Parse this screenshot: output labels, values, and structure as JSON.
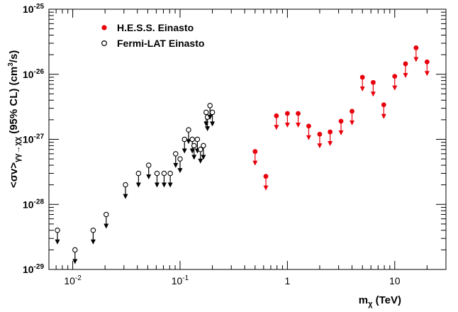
{
  "chart_data": {
    "type": "scatter",
    "title": "",
    "xlabel": {
      "main": "m",
      "sub": "χ",
      "rest": " (TeV)"
    },
    "ylabel": {
      "pre": "<σv>",
      "sub": "γγ→χχ",
      "post": " (95% CL) (cm",
      "sup": "3",
      "tail": "/s)"
    },
    "x_scale": "log",
    "y_scale": "log",
    "xlim": [
      0.006,
      30
    ],
    "ylim": [
      1e-29,
      1e-25
    ],
    "grid": false,
    "legend_position": "top-left",
    "x_ticks": [
      {
        "value": 0.01,
        "base": "10",
        "exp": "-2"
      },
      {
        "value": 0.1,
        "base": "10",
        "exp": "-1"
      },
      {
        "value": 1,
        "base": "1",
        "exp": ""
      },
      {
        "value": 10,
        "base": "10",
        "exp": ""
      }
    ],
    "y_ticks": [
      {
        "value": 1e-29,
        "base": "10",
        "exp": "-29"
      },
      {
        "value": 1e-28,
        "base": "10",
        "exp": "-28"
      },
      {
        "value": 1e-27,
        "base": "10",
        "exp": "-27"
      },
      {
        "value": 1e-26,
        "base": "10",
        "exp": "-26"
      },
      {
        "value": 1e-25,
        "base": "10",
        "exp": "-25"
      }
    ],
    "series": [
      {
        "name": "H.E.S.S. Einasto",
        "marker": "filled-circle",
        "color": "#e8000b",
        "upper_limits": true,
        "points": [
          {
            "x": 0.5,
            "y": 6.5e-28
          },
          {
            "x": 0.63,
            "y": 2.7e-28
          },
          {
            "x": 0.79,
            "y": 2.3e-27
          },
          {
            "x": 1.0,
            "y": 2.5e-27
          },
          {
            "x": 1.26,
            "y": 2.5e-27
          },
          {
            "x": 1.58,
            "y": 1.6e-27
          },
          {
            "x": 2.0,
            "y": 1.2e-27
          },
          {
            "x": 2.5,
            "y": 1.3e-27
          },
          {
            "x": 3.16,
            "y": 1.9e-27
          },
          {
            "x": 4.0,
            "y": 2.7e-27
          },
          {
            "x": 5.0,
            "y": 9e-27
          },
          {
            "x": 6.3,
            "y": 7.5e-27
          },
          {
            "x": 7.9,
            "y": 3.4e-27
          },
          {
            "x": 10.0,
            "y": 9.3e-27
          },
          {
            "x": 12.6,
            "y": 1.45e-26
          },
          {
            "x": 15.8,
            "y": 2.55e-26
          },
          {
            "x": 20.0,
            "y": 1.55e-26
          }
        ]
      },
      {
        "name": "Fermi-LAT Einasto",
        "marker": "open-circle",
        "color": "#000000",
        "upper_limits": true,
        "points": [
          {
            "x": 0.0072,
            "y": 4e-29
          },
          {
            "x": 0.0105,
            "y": 2e-29
          },
          {
            "x": 0.0155,
            "y": 4e-29
          },
          {
            "x": 0.0205,
            "y": 7e-29
          },
          {
            "x": 0.031,
            "y": 2e-28
          },
          {
            "x": 0.041,
            "y": 3e-28
          },
          {
            "x": 0.051,
            "y": 4e-28
          },
          {
            "x": 0.061,
            "y": 3e-28
          },
          {
            "x": 0.071,
            "y": 3e-28
          },
          {
            "x": 0.081,
            "y": 3e-28
          },
          {
            "x": 0.091,
            "y": 6e-28
          },
          {
            "x": 0.1,
            "y": 5e-28
          },
          {
            "x": 0.11,
            "y": 1e-27
          },
          {
            "x": 0.12,
            "y": 1.4e-27
          },
          {
            "x": 0.13,
            "y": 1e-27
          },
          {
            "x": 0.135,
            "y": 8e-28
          },
          {
            "x": 0.145,
            "y": 1e-27
          },
          {
            "x": 0.155,
            "y": 7e-28
          },
          {
            "x": 0.165,
            "y": 8e-28
          },
          {
            "x": 0.175,
            "y": 2.6e-27
          },
          {
            "x": 0.18,
            "y": 2.2e-27
          },
          {
            "x": 0.19,
            "y": 3.3e-27
          },
          {
            "x": 0.2,
            "y": 2.6e-27
          }
        ]
      }
    ]
  }
}
